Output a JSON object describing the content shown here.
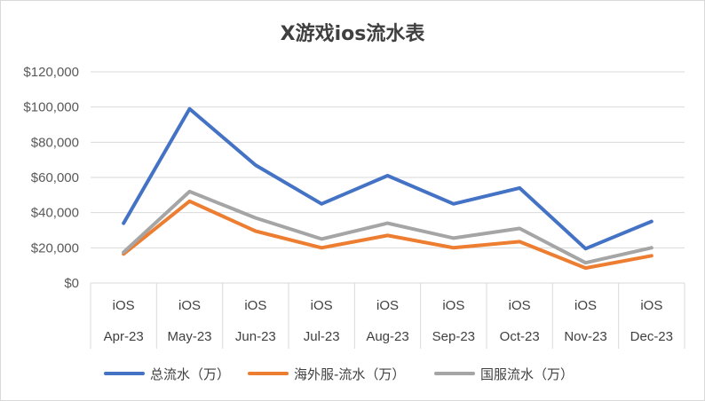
{
  "chart_data": {
    "type": "line",
    "title": "X游戏ios流水表",
    "xlabel": "",
    "ylabel": "",
    "ylim": [
      0,
      120000
    ],
    "yticks": [
      "$0",
      "$20,000",
      "$40,000",
      "$60,000",
      "$80,000",
      "$100,000",
      "$120,000"
    ],
    "ytick_values": [
      0,
      20000,
      40000,
      60000,
      80000,
      100000,
      120000
    ],
    "category_groups": [
      "iOS",
      "iOS",
      "iOS",
      "iOS",
      "iOS",
      "iOS",
      "iOS",
      "iOS",
      "iOS"
    ],
    "categories": [
      "Apr-23",
      "May-23",
      "Jun-23",
      "Jul-23",
      "Aug-23",
      "Sep-23",
      "Oct-23",
      "Nov-23",
      "Dec-23"
    ],
    "grid": true,
    "legend_position": "bottom",
    "series": [
      {
        "name": "总流水（万）",
        "color": "#4472c4",
        "values": [
          34000,
          99000,
          67000,
          45000,
          61000,
          45000,
          54000,
          19500,
          35000
        ]
      },
      {
        "name": "海外服-流水（万）",
        "color": "#ed7d31",
        "values": [
          16500,
          46500,
          29500,
          20000,
          27000,
          20000,
          23500,
          8500,
          15500
        ]
      },
      {
        "name": "国服流水（万）",
        "color": "#a5a5a5",
        "values": [
          17500,
          52000,
          37000,
          25000,
          34000,
          25500,
          31000,
          11500,
          20000
        ]
      }
    ]
  }
}
